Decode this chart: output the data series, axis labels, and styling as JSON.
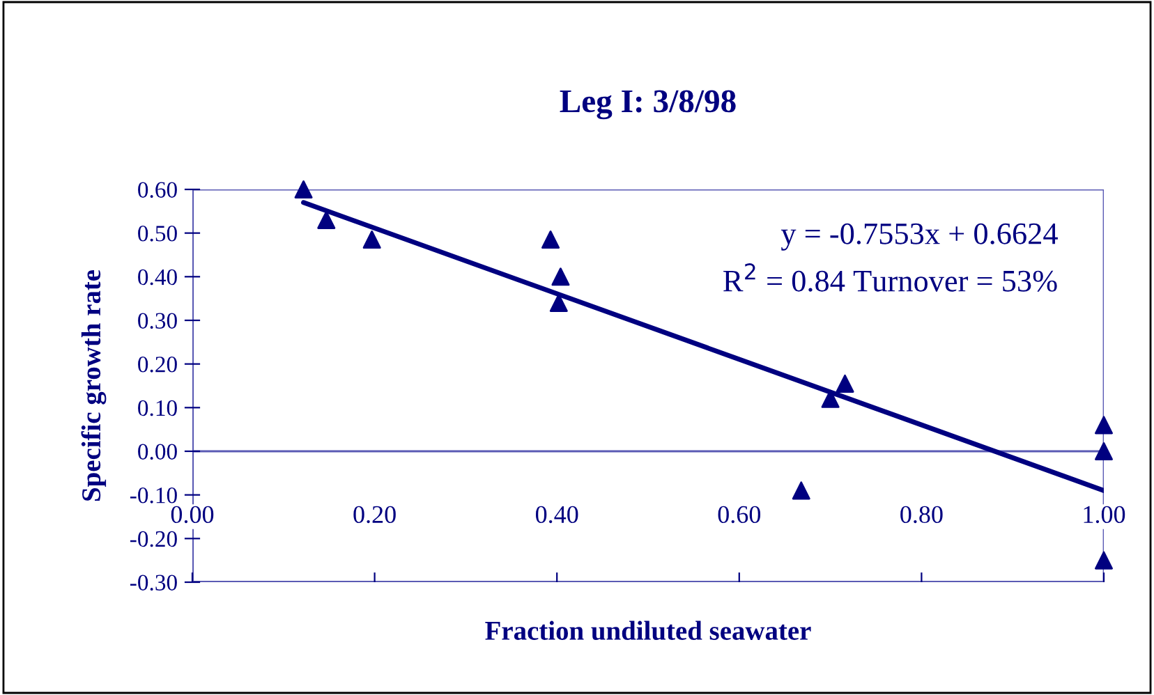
{
  "chart_data": {
    "type": "scatter",
    "title": "Leg I: 3/8/98",
    "xlabel": "Fraction undiluted seawater",
    "ylabel": "Specific growth rate",
    "series": [
      {
        "color": "#000080",
        "marker": "triangle",
        "x": [
          0.122,
          0.147,
          0.197,
          0.393,
          0.404,
          0.402,
          0.668,
          0.7,
          0.716,
          1.0,
          1.0,
          1.0
        ],
        "values": [
          0.6,
          0.53,
          0.485,
          0.485,
          0.4,
          0.34,
          -0.09,
          0.12,
          0.155,
          0.06,
          0.0,
          -0.25
        ]
      },
      {
        "type": "line",
        "color": "#000080",
        "marker": "none",
        "x": [
          0.122,
          1.0
        ],
        "values": [
          0.57,
          -0.09
        ]
      }
    ],
    "annotations": [
      "y = -0.7553x + 0.6624",
      "R$^{2}$ = 0.84 Turnover = 53%"
    ],
    "xlim": [
      0,
      1
    ],
    "xticks": [
      {
        "value": 0.0,
        "label": "0.00"
      },
      {
        "value": 0.2,
        "label": "0.20"
      },
      {
        "value": 0.4,
        "label": "0.40"
      },
      {
        "value": 0.6,
        "label": "0.60"
      },
      {
        "value": 0.8,
        "label": "0.80"
      },
      {
        "value": 1.0,
        "label": "1.00"
      }
    ],
    "ylim": [
      -0.3,
      0.6
    ],
    "yticks": [
      {
        "value": -0.3,
        "label": "-0.30"
      },
      {
        "value": -0.2,
        "label": "-0.20"
      },
      {
        "value": -0.1,
        "label": "-0.10"
      },
      {
        "value": 0.0,
        "label": "0.00"
      },
      {
        "value": 0.1,
        "label": "0.10"
      },
      {
        "value": 0.2,
        "label": "0.20"
      },
      {
        "value": 0.3,
        "label": "0.30"
      },
      {
        "value": 0.4,
        "label": "0.40"
      },
      {
        "value": 0.5,
        "label": "0.50"
      },
      {
        "value": 0.6,
        "label": "0.60"
      }
    ],
    "grid": false,
    "legend": false
  }
}
